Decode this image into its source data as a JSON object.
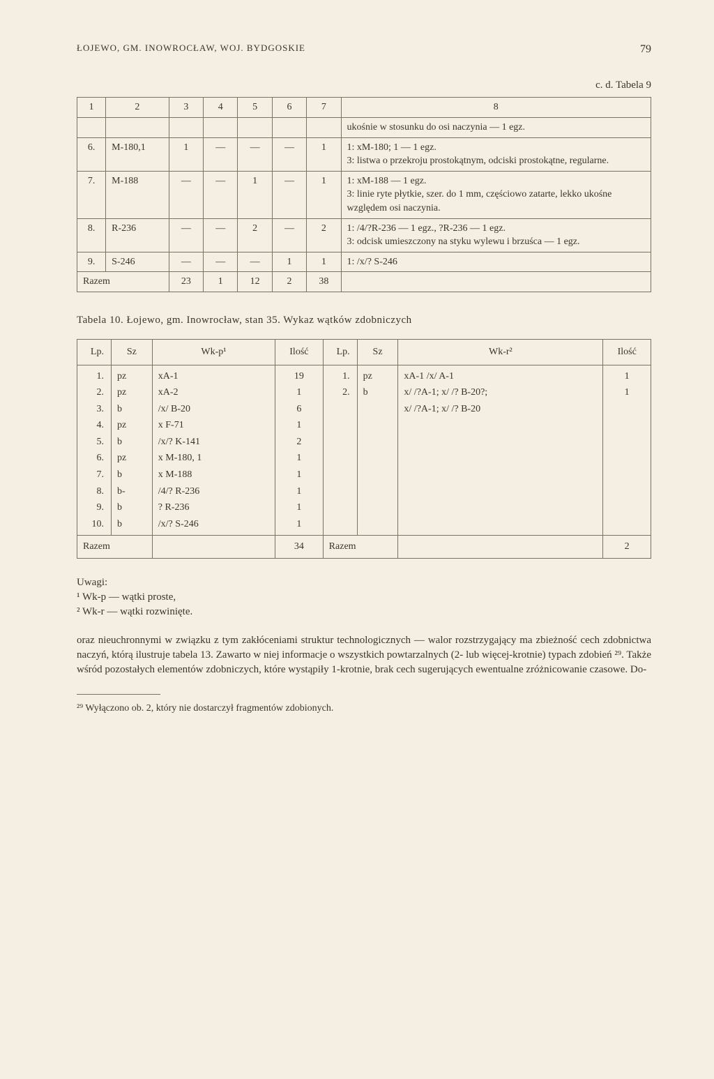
{
  "header": {
    "title": "ŁOJEWO, GM. INOWROCŁAW, WOJ. BYDGOSKIE",
    "page": "79"
  },
  "table9": {
    "caption": "c. d. Tabela 9",
    "headers": [
      "1",
      "2",
      "3",
      "4",
      "5",
      "6",
      "7",
      "8"
    ],
    "rows": [
      {
        "c1": "",
        "c2": "",
        "c3": "",
        "c4": "",
        "c5": "",
        "c6": "",
        "c7": "",
        "c8": "ukośnie w stosunku do osi naczynia — 1 egz."
      },
      {
        "c1": "6.",
        "c2": "M-180,1",
        "c3": "1",
        "c4": "—",
        "c5": "—",
        "c6": "—",
        "c7": "1",
        "c8": "1: xM-180; 1 — 1 egz.\n3: listwa o przekroju prostokątnym, odciski prostokątne, regularne."
      },
      {
        "c1": "7.",
        "c2": "M-188",
        "c3": "—",
        "c4": "—",
        "c5": "1",
        "c6": "—",
        "c7": "1",
        "c8": "1: xM-188 — 1 egz.\n3: linie ryte płytkie, szer. do 1 mm, częściowo zatarte, lekko ukośne względem osi naczynia."
      },
      {
        "c1": "8.",
        "c2": "R-236",
        "c3": "—",
        "c4": "—",
        "c5": "2",
        "c6": "—",
        "c7": "2",
        "c8": "1: /4/?R-236 — 1 egz., ?R-236 — 1 egz.\n3: odcisk umieszczony na styku wylewu i brzuśca — 1 egz."
      },
      {
        "c1": "9.",
        "c2": "S-246",
        "c3": "—",
        "c4": "—",
        "c5": "—",
        "c6": "1",
        "c7": "1",
        "c8": "1: /x/? S-246"
      }
    ],
    "total": {
      "label": "Razem",
      "c3": "23",
      "c4": "1",
      "c5": "12",
      "c6": "2",
      "c7": "38",
      "c8": ""
    }
  },
  "table10": {
    "caption": "Tabela 10. Łojewo, gm. Inowrocław, stan 35. Wykaz wątków zdobniczych",
    "headers": {
      "lp": "Lp.",
      "sz": "Sz",
      "wkp": "Wk-p¹",
      "il": "Ilość",
      "lp2": "Lp.",
      "sz2": "Sz",
      "wkr": "Wk-r²",
      "il2": "Ilość"
    },
    "left": [
      {
        "lp": "1.",
        "sz": "pz",
        "wkp": "xA-1",
        "il": "19"
      },
      {
        "lp": "2.",
        "sz": "pz",
        "wkp": "xA-2",
        "il": "1"
      },
      {
        "lp": "3.",
        "sz": "b",
        "wkp": "/x/ B-20",
        "il": "6"
      },
      {
        "lp": "4.",
        "sz": "pz",
        "wkp": "x F-71",
        "il": "1"
      },
      {
        "lp": "5.",
        "sz": "b",
        "wkp": "/x/? K-141",
        "il": "2"
      },
      {
        "lp": "6.",
        "sz": "pz",
        "wkp": "x M-180, 1",
        "il": "1"
      },
      {
        "lp": "7.",
        "sz": "b",
        "wkp": "x M-188",
        "il": "1"
      },
      {
        "lp": "8.",
        "sz": "b-",
        "wkp": "/4/? R-236",
        "il": "1"
      },
      {
        "lp": "9.",
        "sz": "b",
        "wkp": "? R-236",
        "il": "1"
      },
      {
        "lp": "10.",
        "sz": "b",
        "wkp": "/x/? S-246",
        "il": "1"
      }
    ],
    "right": [
      {
        "lp": "1.",
        "sz": "pz",
        "wkr": "xA-1 /x/ A-1",
        "il": "1"
      },
      {
        "lp": "2.",
        "sz": "b",
        "wkr": "x/ /?A-1; x/ /? B-20?;",
        "il": "1"
      },
      {
        "lp": "",
        "sz": "",
        "wkr": "x/ /?A-1; x/ /? B-20",
        "il": ""
      }
    ],
    "totals": {
      "leftLabel": "Razem",
      "leftTotal": "34",
      "rightLabel": "Razem",
      "rightTotal": "2"
    }
  },
  "notes": {
    "uwagi": "Uwagi:",
    "n1": "¹ Wk-p — wątki proste,",
    "n2": "² Wk-r — wątki rozwinięte."
  },
  "paragraph": "oraz nieuchronnymi w związku z tym zakłóceniami struktur technologicznych — walor rozstrzygający ma zbieżność cech zdobnictwa naczyń, którą ilustruje tabela 13. Zawarto w niej informacje o wszystkich powtarzalnych (2- lub więcej-krotnie) typach zdobień ²⁹. Także wśród pozostałych elementów zdobniczych, które wystąpiły 1-krotnie, brak cech sugerujących ewentualne zróżnicowanie czasowe. Do-",
  "footnote": "²⁹ Wyłączono ob. 2, który nie dostarczył fragmentów zdobionych."
}
